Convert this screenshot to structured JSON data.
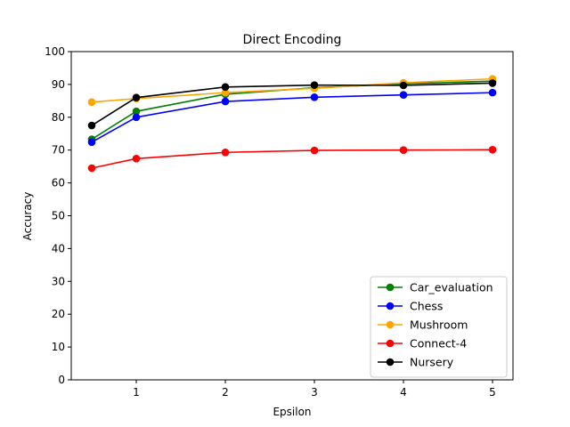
{
  "chart_data": {
    "type": "line",
    "title": "Direct Encoding",
    "xlabel": "Epsilon",
    "ylabel": "Accuracy",
    "x": [
      0.5,
      1,
      2,
      3,
      4,
      5
    ],
    "xlim": [
      0.27,
      5.23
    ],
    "ylim": [
      0,
      100
    ],
    "xticks": [
      1,
      2,
      3,
      4,
      5
    ],
    "yticks": [
      0,
      10,
      20,
      30,
      40,
      50,
      60,
      70,
      80,
      90,
      100
    ],
    "grid": false,
    "legend_position": "lower-right",
    "series": [
      {
        "name": "Car_evaluation",
        "color": "#008000",
        "values": [
          73.3,
          81.8,
          87.0,
          89.0,
          90.2,
          91.0
        ]
      },
      {
        "name": "Chess",
        "color": "#0000ff",
        "values": [
          72.4,
          80.0,
          84.8,
          86.1,
          86.8,
          87.5
        ]
      },
      {
        "name": "Mushroom",
        "color": "#ffa500",
        "values": [
          84.6,
          85.7,
          87.5,
          88.8,
          90.5,
          91.7
        ]
      },
      {
        "name": "Connect-4",
        "color": "#ff0000",
        "values": [
          64.5,
          67.4,
          69.3,
          69.9,
          70.0,
          70.1
        ]
      },
      {
        "name": "Nursery",
        "color": "#000000",
        "values": [
          77.5,
          86.0,
          89.2,
          89.8,
          89.7,
          90.4
        ]
      }
    ]
  }
}
